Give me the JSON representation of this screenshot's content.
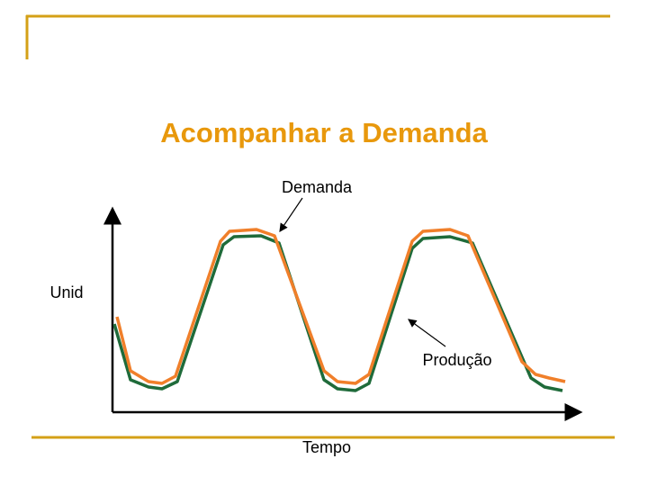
{
  "title": "Acompanhar a Demanda",
  "labels": {
    "demand": "Demanda",
    "y_axis": "Unid",
    "production": "Produção",
    "x_axis": "Tempo"
  }
}
